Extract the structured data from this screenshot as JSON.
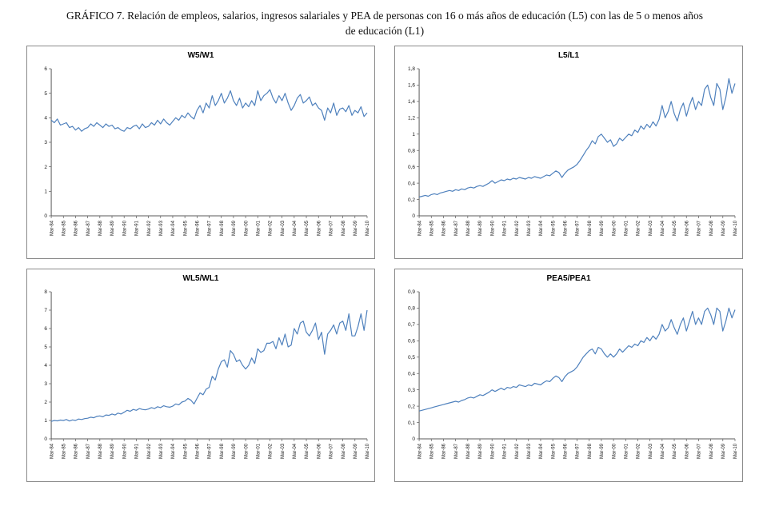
{
  "heading": {
    "line1": "GRÁFICO 7. Relación de empleos, salarios, ingresos salariales y PEA de personas con 16 o más años de educación (L5) con las de 5 o menos años",
    "line2": "de educación (L1)"
  },
  "style": {
    "line_color": "#4F81BD",
    "axis_color": "#5a5a5a",
    "tick_text_color": "#1a1a1a",
    "panel_border_color": "#8a8a8a"
  },
  "chart_data": {
    "type": "line",
    "categories": [
      "Mar-84",
      "Mar-85",
      "Mar-86",
      "Mar-87",
      "Mar-88",
      "Mar-89",
      "Mar-90",
      "Mar-91",
      "Mar-92",
      "Mar-93",
      "Mar-94",
      "Mar-95",
      "Mar-96",
      "Mar-97",
      "Mar-98",
      "Mar-99",
      "Mar-00",
      "Mar-01",
      "Mar-02",
      "Mar-03",
      "Mar-04",
      "Mar-05",
      "Mar-06",
      "Mar-07",
      "Mar-08",
      "Mar-09",
      "Mar-10"
    ],
    "points_per_category": 4,
    "x_frequency": "quarterly",
    "legend": "none",
    "grid": "off",
    "charts": [
      {
        "title": "W5/W1",
        "ylim": [
          0,
          6
        ],
        "yticks": [
          "0",
          "1",
          "2",
          "3",
          "4",
          "5",
          "6"
        ],
        "values": [
          3.9,
          3.8,
          3.95,
          3.7,
          3.75,
          3.8,
          3.6,
          3.65,
          3.5,
          3.6,
          3.45,
          3.55,
          3.6,
          3.75,
          3.65,
          3.8,
          3.7,
          3.6,
          3.75,
          3.65,
          3.7,
          3.55,
          3.6,
          3.5,
          3.45,
          3.6,
          3.55,
          3.65,
          3.7,
          3.55,
          3.75,
          3.6,
          3.65,
          3.8,
          3.7,
          3.9,
          3.75,
          3.95,
          3.8,
          3.7,
          3.85,
          4.0,
          3.9,
          4.1,
          4.0,
          4.2,
          4.05,
          3.95,
          4.3,
          4.5,
          4.2,
          4.6,
          4.4,
          4.9,
          4.5,
          4.7,
          5.0,
          4.6,
          4.8,
          5.1,
          4.7,
          4.5,
          4.8,
          4.4,
          4.6,
          4.45,
          4.7,
          4.5,
          5.1,
          4.7,
          4.9,
          5.0,
          5.15,
          4.8,
          4.6,
          4.9,
          4.7,
          5.0,
          4.6,
          4.3,
          4.5,
          4.8,
          4.95,
          4.6,
          4.7,
          4.85,
          4.5,
          4.6,
          4.4,
          4.3,
          3.9,
          4.4,
          4.2,
          4.6,
          4.1,
          4.35,
          4.4,
          4.25,
          4.5,
          4.1,
          4.3,
          4.2,
          4.45,
          4.05,
          4.2
        ]
      },
      {
        "title": "L5/L1",
        "ylim": [
          0,
          1.8
        ],
        "yticks": [
          "0",
          "0,2",
          "0,4",
          "0,6",
          "0,8",
          "1",
          "1,2",
          "1,4",
          "1,6",
          "1,8"
        ],
        "values": [
          0.23,
          0.24,
          0.25,
          0.24,
          0.26,
          0.27,
          0.26,
          0.28,
          0.29,
          0.3,
          0.31,
          0.3,
          0.32,
          0.31,
          0.33,
          0.32,
          0.34,
          0.35,
          0.34,
          0.36,
          0.37,
          0.36,
          0.38,
          0.4,
          0.43,
          0.4,
          0.42,
          0.44,
          0.43,
          0.45,
          0.44,
          0.46,
          0.45,
          0.47,
          0.46,
          0.45,
          0.47,
          0.46,
          0.48,
          0.47,
          0.46,
          0.48,
          0.5,
          0.49,
          0.52,
          0.55,
          0.53,
          0.47,
          0.52,
          0.56,
          0.58,
          0.6,
          0.63,
          0.68,
          0.74,
          0.8,
          0.85,
          0.92,
          0.88,
          0.97,
          1.0,
          0.95,
          0.9,
          0.93,
          0.85,
          0.88,
          0.95,
          0.92,
          0.96,
          1.0,
          0.98,
          1.05,
          1.02,
          1.1,
          1.06,
          1.12,
          1.08,
          1.15,
          1.1,
          1.18,
          1.35,
          1.2,
          1.28,
          1.4,
          1.25,
          1.16,
          1.3,
          1.38,
          1.22,
          1.35,
          1.45,
          1.3,
          1.4,
          1.35,
          1.55,
          1.6,
          1.45,
          1.35,
          1.62,
          1.55,
          1.3,
          1.45,
          1.68,
          1.5,
          1.62
        ]
      },
      {
        "title": "WL5/WL1",
        "ylim": [
          0,
          8
        ],
        "yticks": [
          "0",
          "1",
          "2",
          "3",
          "4",
          "5",
          "6",
          "7",
          "8"
        ],
        "values": [
          0.95,
          1.0,
          0.98,
          1.02,
          1.0,
          1.05,
          0.97,
          1.03,
          1.0,
          1.08,
          1.05,
          1.1,
          1.12,
          1.18,
          1.15,
          1.22,
          1.25,
          1.2,
          1.3,
          1.28,
          1.35,
          1.3,
          1.4,
          1.35,
          1.45,
          1.55,
          1.5,
          1.6,
          1.55,
          1.65,
          1.6,
          1.58,
          1.62,
          1.7,
          1.65,
          1.75,
          1.7,
          1.8,
          1.75,
          1.72,
          1.78,
          1.9,
          1.85,
          2.0,
          2.05,
          2.2,
          2.1,
          1.9,
          2.2,
          2.5,
          2.4,
          2.7,
          2.8,
          3.4,
          3.2,
          3.8,
          4.2,
          4.3,
          3.9,
          4.8,
          4.6,
          4.2,
          4.3,
          4.0,
          3.8,
          4.0,
          4.4,
          4.1,
          4.9,
          4.7,
          4.8,
          5.2,
          5.2,
          5.3,
          4.9,
          5.5,
          5.1,
          5.7,
          5.0,
          5.1,
          6.0,
          5.7,
          6.3,
          6.4,
          5.8,
          5.6,
          5.9,
          6.3,
          5.4,
          5.8,
          4.6,
          5.7,
          5.9,
          6.2,
          5.7,
          6.3,
          6.4,
          5.9,
          6.8,
          5.6,
          5.6,
          6.1,
          6.8,
          5.9,
          7.0
        ]
      },
      {
        "title": "PEA5/PEA1",
        "ylim": [
          0,
          0.9
        ],
        "yticks": [
          "0",
          "0,1",
          "0,2",
          "0,3",
          "0,4",
          "0,5",
          "0,6",
          "0,7",
          "0,8",
          "0,9"
        ],
        "values": [
          0.17,
          0.175,
          0.18,
          0.185,
          0.19,
          0.195,
          0.2,
          0.205,
          0.21,
          0.215,
          0.22,
          0.225,
          0.23,
          0.225,
          0.235,
          0.24,
          0.25,
          0.255,
          0.25,
          0.26,
          0.27,
          0.265,
          0.275,
          0.285,
          0.3,
          0.29,
          0.3,
          0.31,
          0.3,
          0.315,
          0.31,
          0.32,
          0.315,
          0.33,
          0.325,
          0.32,
          0.33,
          0.325,
          0.34,
          0.335,
          0.33,
          0.345,
          0.355,
          0.35,
          0.37,
          0.385,
          0.375,
          0.35,
          0.38,
          0.4,
          0.41,
          0.42,
          0.44,
          0.47,
          0.5,
          0.52,
          0.54,
          0.55,
          0.52,
          0.56,
          0.55,
          0.52,
          0.5,
          0.52,
          0.5,
          0.52,
          0.55,
          0.53,
          0.55,
          0.57,
          0.56,
          0.58,
          0.57,
          0.6,
          0.59,
          0.62,
          0.6,
          0.63,
          0.61,
          0.64,
          0.7,
          0.66,
          0.68,
          0.73,
          0.68,
          0.64,
          0.7,
          0.74,
          0.66,
          0.72,
          0.78,
          0.7,
          0.74,
          0.7,
          0.78,
          0.8,
          0.76,
          0.7,
          0.8,
          0.78,
          0.66,
          0.72,
          0.8,
          0.74,
          0.79
        ]
      }
    ]
  }
}
